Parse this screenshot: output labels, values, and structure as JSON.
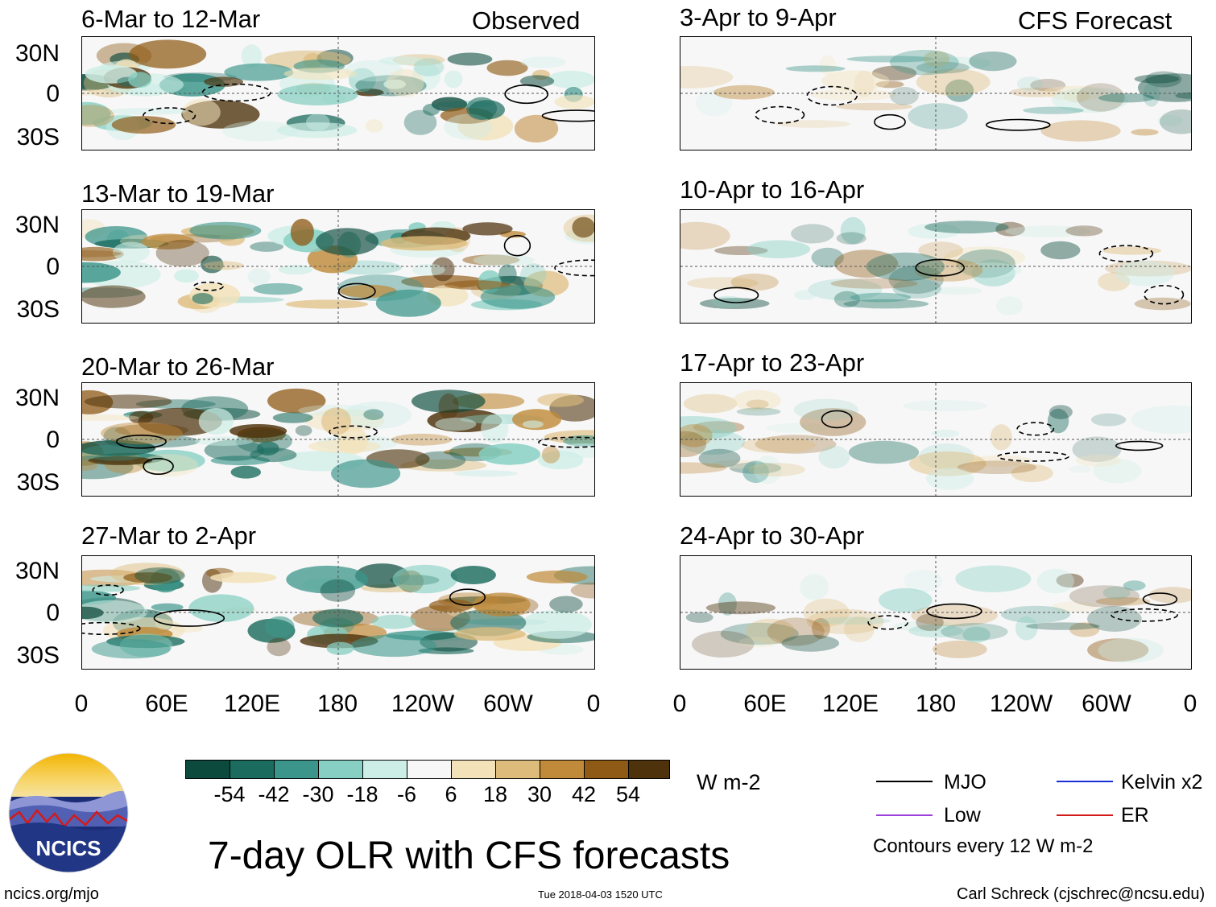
{
  "panels_left": [
    {
      "title": "6-Mar to 12-Mar",
      "tag": "Observed"
    },
    {
      "title": "13-Mar to 19-Mar",
      "tag": ""
    },
    {
      "title": "20-Mar to 26-Mar",
      "tag": ""
    },
    {
      "title": "27-Mar to 2-Apr",
      "tag": ""
    }
  ],
  "panels_right": [
    {
      "title": "3-Apr to 9-Apr",
      "tag": "CFS Forecast"
    },
    {
      "title": "10-Apr to 16-Apr",
      "tag": ""
    },
    {
      "title": "17-Apr to 23-Apr",
      "tag": ""
    },
    {
      "title": "24-Apr to 30-Apr",
      "tag": ""
    }
  ],
  "lat_labels": [
    "30N",
    "0",
    "30S"
  ],
  "lon_labels": [
    "0",
    "60E",
    "120E",
    "180",
    "120W",
    "60W",
    "0"
  ],
  "colorbar": {
    "colors": [
      "#0b4a3c",
      "#1b6b5e",
      "#3b958a",
      "#86cfc2",
      "#cdeee6",
      "#f7f7f7",
      "#f3e2b9",
      "#ddbb7a",
      "#c08a3a",
      "#8f5a15",
      "#4e320c"
    ],
    "ticks": [
      "-54",
      "-42",
      "-30",
      "-18",
      "-6",
      "6",
      "18",
      "30",
      "42",
      "54"
    ],
    "unit": "W m-2"
  },
  "legend": {
    "mjo": "MJO",
    "mjo_color": "#000000",
    "kelvin": "Kelvin x2",
    "kelvin_color": "#1a2ed6",
    "low": "Low",
    "low_color": "#9b3fdc",
    "er": "ER",
    "er_color": "#d21a1a",
    "contours": "Contours every 12 W m-2"
  },
  "logo": {
    "text": "NCICS"
  },
  "main_title": "7-day OLR with CFS forecasts",
  "footer": {
    "url": "ncics.org/mjo",
    "timestamp": "Tue 2018-04-03 1520 UTC",
    "credit": "Carl Schreck (cjschrec@ncsu.edu)"
  }
}
